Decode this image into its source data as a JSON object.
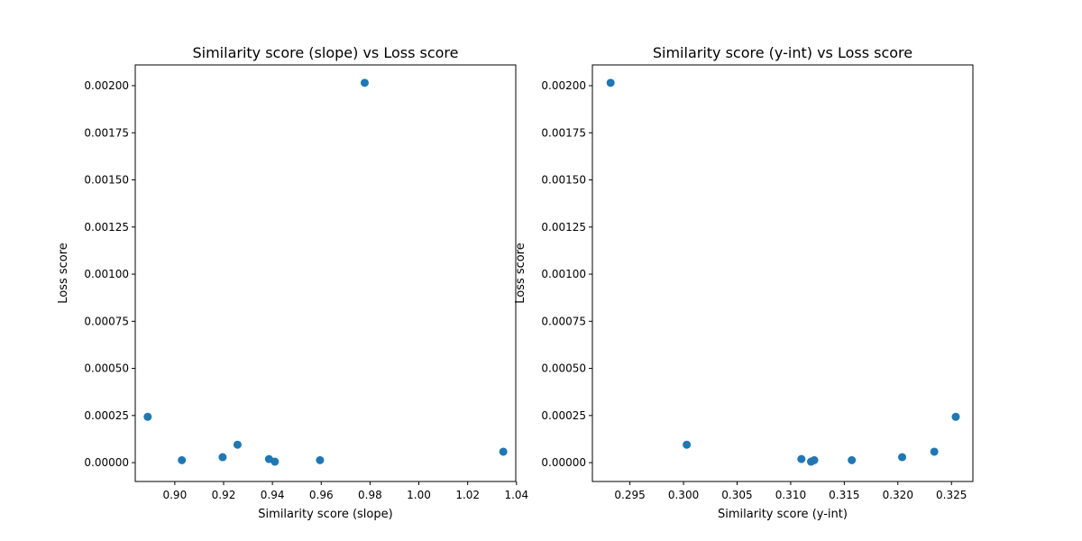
{
  "chart_data": [
    {
      "type": "scatter",
      "title": "Similarity score (slope) vs Loss score",
      "xlabel": "Similarity score (slope)",
      "ylabel": "Loss score",
      "xlim": [
        0.8838,
        1.0397
      ],
      "ylim": [
        -0.0001,
        0.00211
      ],
      "xticks": [
        0.9,
        0.92,
        0.94,
        0.96,
        0.98,
        1.0,
        1.02,
        1.04
      ],
      "xtick_labels": [
        "0.90",
        "0.92",
        "0.94",
        "0.96",
        "0.98",
        "1.00",
        "1.02",
        "1.04"
      ],
      "yticks": [
        0.0,
        0.00025,
        0.0005,
        0.00075,
        0.001,
        0.00125,
        0.0015,
        0.00175,
        0.002
      ],
      "ytick_labels": [
        "0.00000",
        "0.00025",
        "0.00050",
        "0.00075",
        "0.00100",
        "0.00125",
        "0.00150",
        "0.00175",
        "0.00200"
      ],
      "marker_color": "#1f77b4",
      "points": [
        {
          "x": 0.8889,
          "y": 0.000243
        },
        {
          "x": 0.9029,
          "y": 1.3e-05
        },
        {
          "x": 0.9196,
          "y": 2.9e-05
        },
        {
          "x": 0.9257,
          "y": 9.5e-05
        },
        {
          "x": 0.9386,
          "y": 1.9e-05
        },
        {
          "x": 0.941,
          "y": 5e-06
        },
        {
          "x": 0.9595,
          "y": 1.3e-05
        },
        {
          "x": 0.9778,
          "y": 0.002015
        },
        {
          "x": 1.0346,
          "y": 5.8e-05
        }
      ]
    },
    {
      "type": "scatter",
      "title": "Similarity score (y-int) vs Loss score",
      "xlabel": "Similarity score (y-int)",
      "ylabel": "Loss score",
      "xlim": [
        0.2915,
        0.327
      ],
      "ylim": [
        -0.0001,
        0.00211
      ],
      "xticks": [
        0.295,
        0.3,
        0.305,
        0.31,
        0.315,
        0.32,
        0.325
      ],
      "xtick_labels": [
        "0.295",
        "0.300",
        "0.305",
        "0.310",
        "0.315",
        "0.320",
        "0.325"
      ],
      "yticks": [
        0.0,
        0.00025,
        0.0005,
        0.00075,
        0.001,
        0.00125,
        0.0015,
        0.00175,
        0.002
      ],
      "ytick_labels": [
        "0.00000",
        "0.00025",
        "0.00050",
        "0.00075",
        "0.00100",
        "0.00125",
        "0.00150",
        "0.00175",
        "0.00200"
      ],
      "marker_color": "#1f77b4",
      "points": [
        {
          "x": 0.2932,
          "y": 0.002015
        },
        {
          "x": 0.3003,
          "y": 9.5e-05
        },
        {
          "x": 0.311,
          "y": 1.9e-05
        },
        {
          "x": 0.3119,
          "y": 5e-06
        },
        {
          "x": 0.3122,
          "y": 1.3e-05
        },
        {
          "x": 0.3157,
          "y": 1.3e-05
        },
        {
          "x": 0.3204,
          "y": 2.9e-05
        },
        {
          "x": 0.3234,
          "y": 5.8e-05
        },
        {
          "x": 0.3254,
          "y": 0.000243
        }
      ]
    }
  ]
}
